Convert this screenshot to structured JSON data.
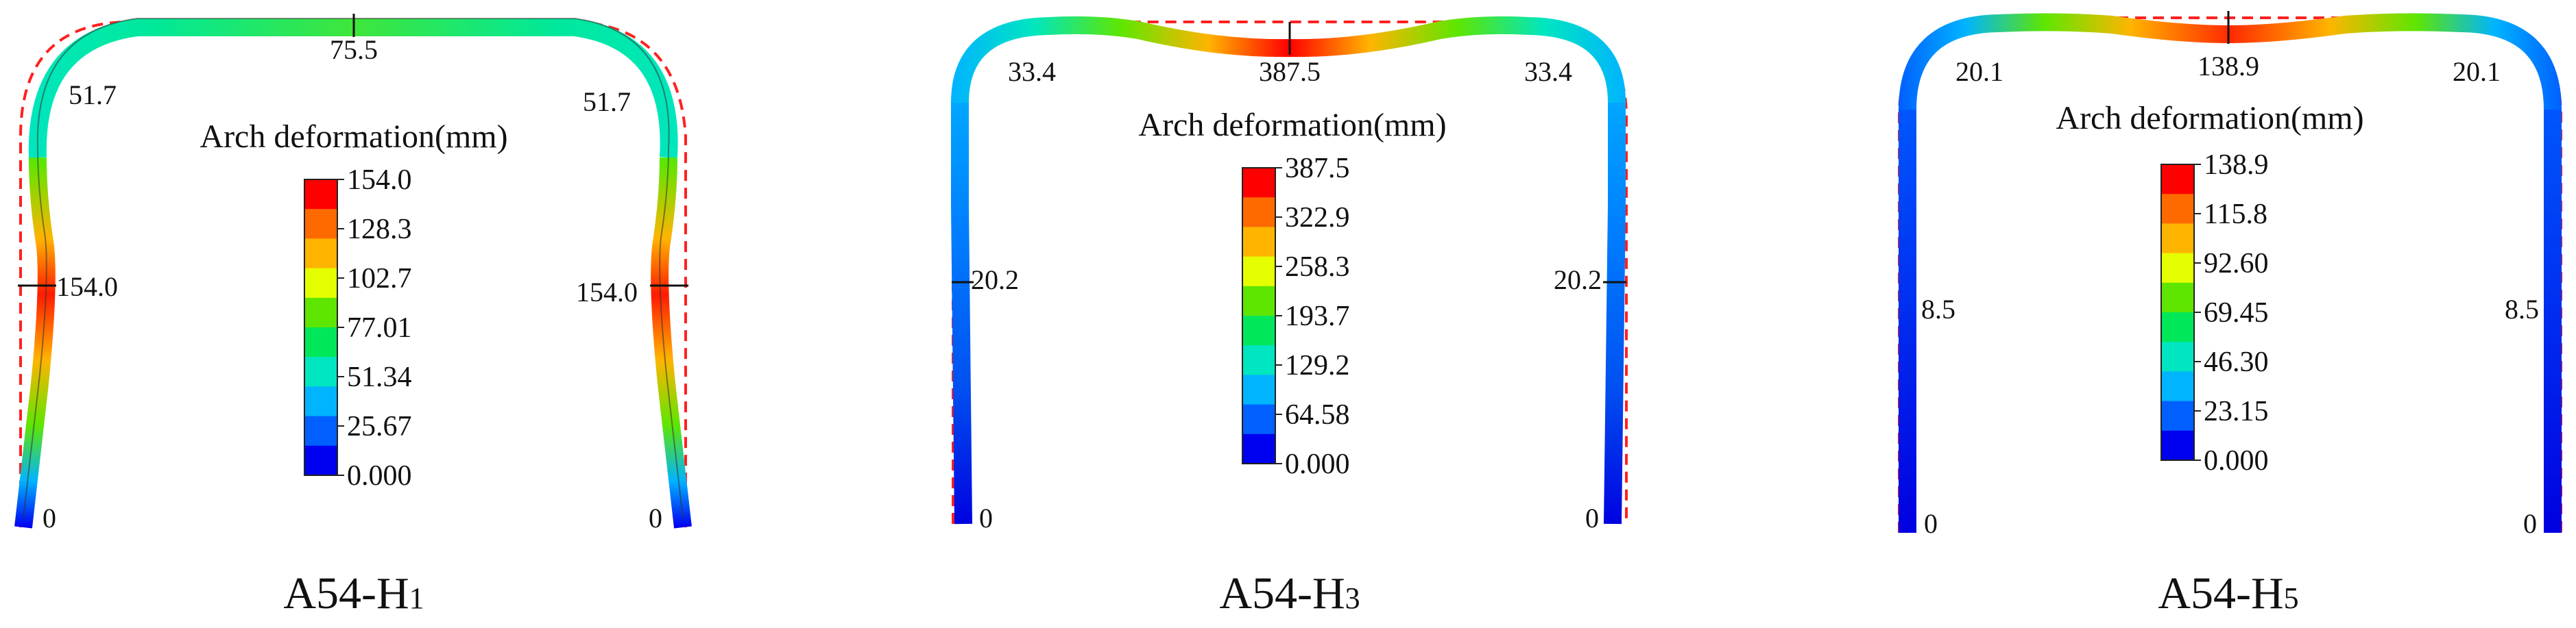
{
  "figure": {
    "legend_title": "Arch deformation(mm)",
    "panels": [
      {
        "caption_main": "A54-H",
        "caption_sub": "1",
        "mode": "wall",
        "labels": {
          "crown": "75.5",
          "shoulder_left": "51.7",
          "shoulder_right": "51.7",
          "wall_left": "154.0",
          "wall_right": "154.0",
          "foot_left": "0",
          "foot_right": "0"
        },
        "legend_values": [
          "154.0",
          "128.3",
          "102.7",
          "77.01",
          "51.34",
          "25.67",
          "0.000"
        ]
      },
      {
        "caption_main": "A54-H",
        "caption_sub": "3",
        "mode": "crown",
        "labels": {
          "crown": "387.5",
          "shoulder_left": "33.4",
          "shoulder_right": "33.4",
          "wall_left": "20.2",
          "wall_right": "20.2",
          "foot_left": "0",
          "foot_right": "0"
        },
        "legend_values": [
          "387.5",
          "322.9",
          "258.3",
          "193.7",
          "129.2",
          "64.58",
          "0.000"
        ]
      },
      {
        "caption_main": "A54-H",
        "caption_sub": "5",
        "mode": "crown",
        "labels": {
          "crown": "138.9",
          "shoulder_left": "20.1",
          "shoulder_right": "20.1",
          "wall_left": "8.5",
          "wall_right": "8.5",
          "foot_left": "0",
          "foot_right": "0"
        },
        "legend_values": [
          "138.9",
          "115.8",
          "92.60",
          "69.45",
          "46.30",
          "23.15",
          "0.000"
        ]
      }
    ],
    "colors": {
      "undeformed_outline": "#ff2020",
      "scale": [
        "#ff0000",
        "#ff6a00",
        "#ffb400",
        "#e6ff00",
        "#5fe600",
        "#00e85a",
        "#00e6c0",
        "#00b4ff",
        "#0060ff",
        "#0000f0"
      ]
    }
  }
}
